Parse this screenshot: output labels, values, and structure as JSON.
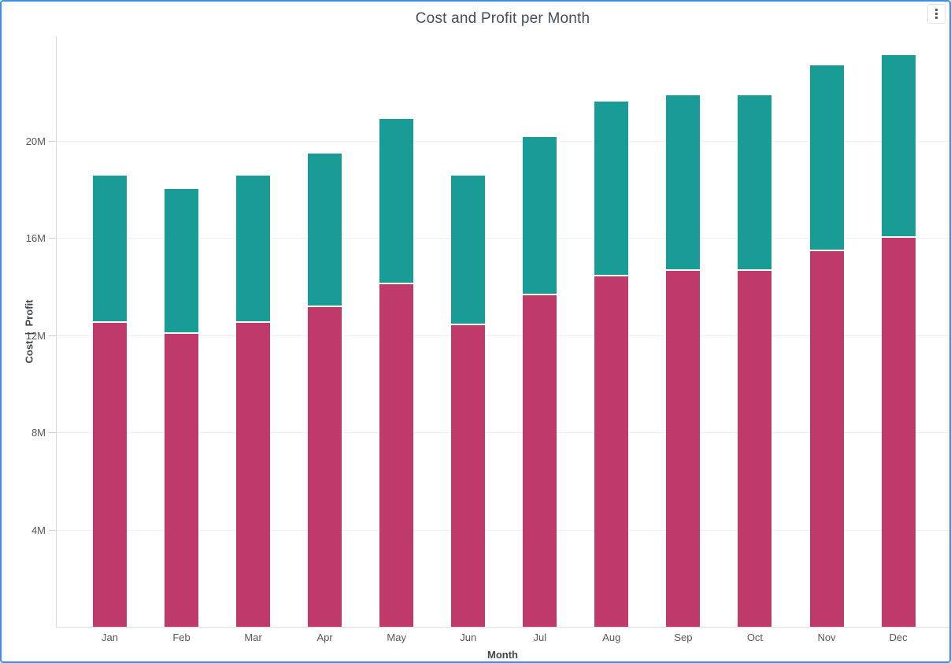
{
  "window": {
    "menu_button": {
      "icon": "kebab-menu-icon",
      "glyph": "⋮"
    }
  },
  "colors": {
    "frame_border": "#3e8ee4",
    "cost": "#bf3a69",
    "profit": "#199b96",
    "gridline": "#f0f0f0",
    "axis_line": "#d9d9d9",
    "tick_text": "#53585e"
  },
  "chart_data": {
    "type": "bar",
    "stacked": true,
    "title": "Cost and Profit per Month",
    "xlabel": "Month",
    "ylabel": "Cost  |  Profit",
    "units": "M",
    "grid": "horizontal",
    "legend": "none",
    "ylim": [
      0,
      24.3
    ],
    "categories": [
      "Jan",
      "Feb",
      "Mar",
      "Apr",
      "May",
      "Jun",
      "Jul",
      "Aug",
      "Sep",
      "Oct",
      "Nov",
      "Dec"
    ],
    "series": [
      {
        "name": "Cost",
        "color": "#bf3a69",
        "values": [
          12.5,
          12.05,
          12.5,
          13.15,
          14.1,
          12.4,
          13.65,
          14.4,
          14.65,
          14.65,
          15.45,
          16.0
        ]
      },
      {
        "name": "Profit",
        "color": "#199b96",
        "values": [
          6.05,
          5.95,
          6.05,
          6.3,
          6.8,
          6.15,
          6.5,
          7.2,
          7.2,
          7.2,
          7.65,
          7.5
        ]
      }
    ],
    "totals": [
      18.55,
      18.0,
      18.55,
      19.45,
      20.9,
      18.55,
      20.15,
      21.6,
      21.85,
      21.85,
      23.1,
      23.5
    ],
    "y_ticks": [
      {
        "label": "20M",
        "value": 20
      },
      {
        "label": "16M",
        "value": 16
      },
      {
        "label": "12M",
        "value": 12
      },
      {
        "label": "8M",
        "value": 8
      },
      {
        "label": "4M",
        "value": 4
      }
    ]
  }
}
